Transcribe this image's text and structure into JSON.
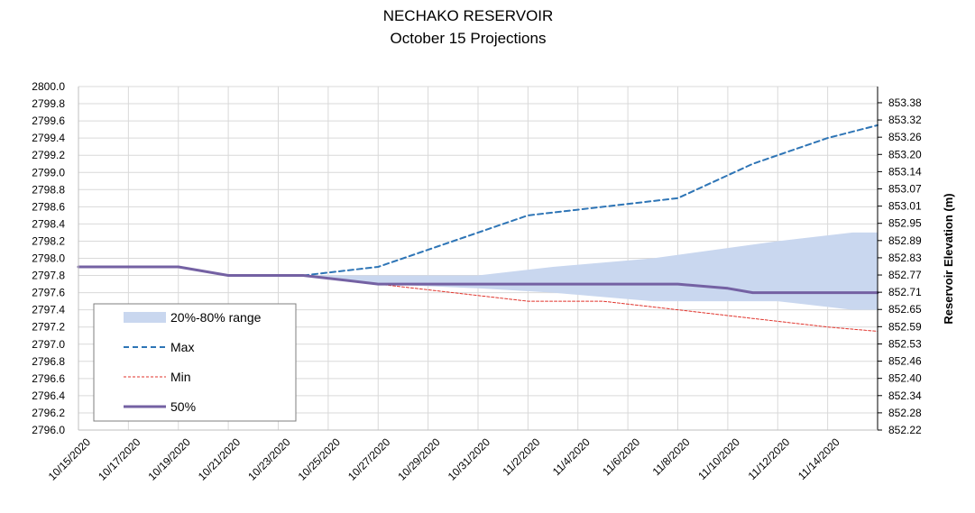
{
  "title": "NECHAKO RESERVOIR",
  "subtitle": "October 15 Projections",
  "chart_data": {
    "type": "line",
    "xlabel": "",
    "ylabel": "",
    "y2label": "Reservoir Elevation (m)",
    "x_tick_labels": [
      "10/15/2020",
      "10/17/2020",
      "10/19/2020",
      "10/21/2020",
      "10/23/2020",
      "10/25/2020",
      "10/27/2020",
      "10/29/2020",
      "10/31/2020",
      "11/2/2020",
      "11/4/2020",
      "11/6/2020",
      "11/8/2020",
      "11/10/2020",
      "11/12/2020",
      "11/14/2020"
    ],
    "x_range": [
      "2020-10-15",
      "2020-11-16"
    ],
    "ylim": [
      2796.0,
      2800.0
    ],
    "y_ticks": [
      "2796.0",
      "2796.2",
      "2796.4",
      "2796.6",
      "2796.8",
      "2797.0",
      "2797.2",
      "2797.4",
      "2797.6",
      "2797.8",
      "2798.0",
      "2798.2",
      "2798.4",
      "2798.6",
      "2798.8",
      "2799.0",
      "2799.2",
      "2799.4",
      "2799.6",
      "2799.8",
      "2800.0"
    ],
    "y2_ticks": [
      "852.22",
      "852.28",
      "852.34",
      "852.40",
      "852.46",
      "852.53",
      "852.59",
      "852.65",
      "852.71",
      "852.77",
      "852.83",
      "852.89",
      "852.95",
      "853.01",
      "853.07",
      "853.14",
      "853.20",
      "853.26",
      "853.32",
      "853.38"
    ],
    "grid": true,
    "legend_position": "lower-left",
    "series": [
      {
        "name": "20%-80% range",
        "kind": "band",
        "color": "#c9d7ef",
        "x": [
          "2020-10-24",
          "2020-10-27",
          "2020-10-31",
          "2020-11-03",
          "2020-11-07",
          "2020-11-12",
          "2020-11-15",
          "2020-11-16"
        ],
        "lower": [
          2797.8,
          2797.7,
          2797.65,
          2797.6,
          2797.5,
          2797.5,
          2797.4,
          2797.4
        ],
        "upper": [
          2797.8,
          2797.8,
          2797.8,
          2797.9,
          2798.0,
          2798.2,
          2798.3,
          2798.3
        ]
      },
      {
        "name": "Max",
        "kind": "line",
        "color": "#2e75b6",
        "dash": "6,4",
        "width": 2,
        "x": [
          "2020-10-15",
          "2020-10-19",
          "2020-10-21",
          "2020-10-24",
          "2020-10-27",
          "2020-10-30",
          "2020-11-02",
          "2020-11-05",
          "2020-11-08",
          "2020-11-11",
          "2020-11-14",
          "2020-11-16"
        ],
        "values": [
          2797.9,
          2797.9,
          2797.8,
          2797.8,
          2797.9,
          2798.2,
          2798.5,
          2798.6,
          2798.7,
          2799.1,
          2799.4,
          2799.55
        ]
      },
      {
        "name": "Min",
        "kind": "line",
        "color": "#e0332b",
        "dash": "3,2",
        "width": 1,
        "x": [
          "2020-10-15",
          "2020-10-19",
          "2020-10-21",
          "2020-10-24",
          "2020-10-27",
          "2020-10-30",
          "2020-11-02",
          "2020-11-05",
          "2020-11-08",
          "2020-11-11",
          "2020-11-14",
          "2020-11-16"
        ],
        "values": [
          2797.9,
          2797.9,
          2797.8,
          2797.8,
          2797.7,
          2797.6,
          2797.5,
          2797.5,
          2797.4,
          2797.3,
          2797.2,
          2797.15
        ]
      },
      {
        "name": "50%",
        "kind": "line",
        "color": "#7461a3",
        "dash": "",
        "width": 3,
        "x": [
          "2020-10-15",
          "2020-10-19",
          "2020-10-21",
          "2020-10-24",
          "2020-10-27",
          "2020-11-02",
          "2020-11-08",
          "2020-11-10",
          "2020-11-11",
          "2020-11-16"
        ],
        "values": [
          2797.9,
          2797.9,
          2797.8,
          2797.8,
          2797.7,
          2797.7,
          2797.7,
          2797.65,
          2797.6,
          2797.6
        ]
      }
    ]
  }
}
